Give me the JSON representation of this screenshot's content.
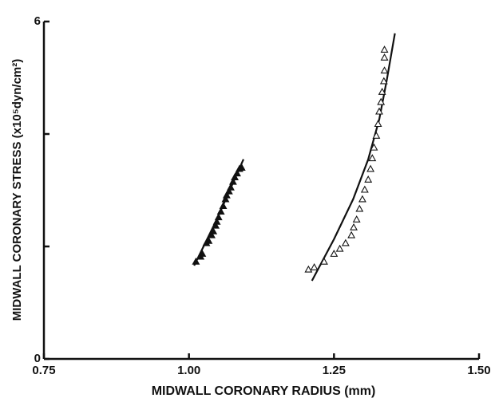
{
  "chart_data": {
    "type": "scatter",
    "xlabel": "MIDWALL CORONARY RADIUS (mm)",
    "ylabel": "MIDWALL CORONARY STRESS (x10⁵dyn/cm²)",
    "xlim": [
      0.75,
      1.5
    ],
    "xticks": [
      {
        "value": 0.75,
        "label": "0.75"
      },
      {
        "value": 1.0,
        "label": "1.00"
      },
      {
        "value": 1.25,
        "label": "1.25"
      },
      {
        "value": 1.5,
        "label": "1.50"
      }
    ],
    "ylim": [
      0,
      6
    ],
    "yticks": [
      0,
      6
    ],
    "yminor_ticks": [
      2,
      4
    ],
    "series": [
      {
        "marker": "triangle",
        "filled": true,
        "color": "#111111",
        "x": [
          1.012,
          1.02,
          1.023,
          1.03,
          1.034,
          1.039,
          1.042,
          1.046,
          1.048,
          1.051,
          1.055,
          1.059,
          1.063,
          1.065,
          1.069,
          1.072,
          1.076,
          1.079,
          1.083,
          1.087,
          1.091
        ],
        "values": [
          1.73,
          1.82,
          1.87,
          2.06,
          2.1,
          2.2,
          2.27,
          2.37,
          2.44,
          2.52,
          2.62,
          2.72,
          2.84,
          2.91,
          2.98,
          3.05,
          3.15,
          3.23,
          3.3,
          3.38,
          3.4
        ]
      },
      {
        "marker": "triangle",
        "filled": false,
        "color": "#111111",
        "x": [
          1.206,
          1.216,
          1.233,
          1.25,
          1.26,
          1.27,
          1.28,
          1.284,
          1.289,
          1.294,
          1.299,
          1.303,
          1.309,
          1.313,
          1.316,
          1.319,
          1.323,
          1.326,
          1.328,
          1.331,
          1.333,
          1.336,
          1.337,
          1.337,
          1.337
        ],
        "values": [
          1.59,
          1.63,
          1.73,
          1.87,
          1.96,
          2.06,
          2.2,
          2.34,
          2.48,
          2.67,
          2.84,
          3.01,
          3.19,
          3.38,
          3.57,
          3.76,
          3.97,
          4.18,
          4.4,
          4.57,
          4.75,
          4.94,
          5.13,
          5.36,
          5.5
        ]
      }
    ],
    "curves": [
      {
        "color": "#111111",
        "x": [
          1.009,
          1.048,
          1.094
        ],
        "values": [
          1.66,
          2.48,
          3.55
        ]
      },
      {
        "color": "#111111",
        "x": [
          1.212,
          1.25,
          1.283,
          1.309,
          1.328,
          1.341,
          1.355
        ],
        "values": [
          1.39,
          2.13,
          2.84,
          3.55,
          4.26,
          4.96,
          5.79
        ]
      }
    ]
  }
}
